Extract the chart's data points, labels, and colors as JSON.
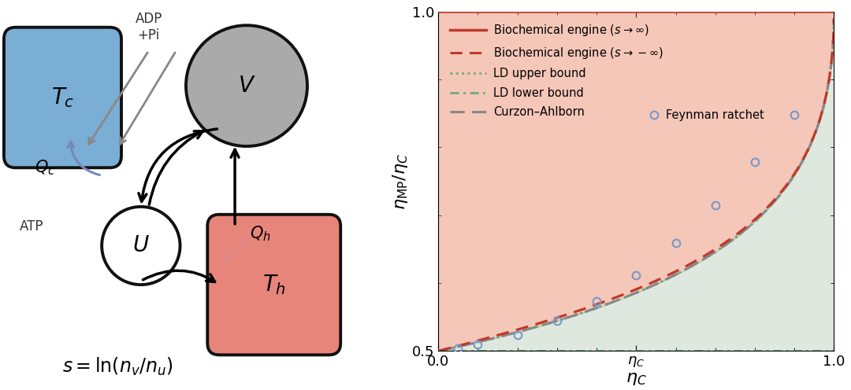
{
  "fig_width": 10.8,
  "fig_height": 4.96,
  "dpi": 100,
  "bg_color": "#ffffff",
  "bio_engine_inf_color": "#c0392b",
  "bio_engine_neg_inf_color": "#c0392b",
  "ld_upper_color": "#6aaa80",
  "ld_lower_color": "#6aaa80",
  "curzon_color": "#888888",
  "feynman_color": "#7799cc",
  "feynman_x": [
    0.05,
    0.1,
    0.2,
    0.3,
    0.4,
    0.5,
    0.6,
    0.7,
    0.8,
    0.9
  ],
  "feynman_y": [
    0.504,
    0.51,
    0.524,
    0.545,
    0.573,
    0.612,
    0.659,
    0.715,
    0.778,
    0.848
  ],
  "xlim": [
    0.0,
    1.0
  ],
  "ylim": [
    0.5,
    1.0
  ],
  "fill_red_alpha": 0.35,
  "fill_tan_alpha": 0.45,
  "fill_green_alpha": 0.3,
  "Tc_box_color": "#7baed4",
  "Tc_box_edge": "#111111",
  "Th_box_color": "#e8857a",
  "Th_box_edge": "#111111",
  "V_circle_color": "#aaaaaa",
  "V_circle_edge": "#111111",
  "U_circle_color": "#ffffff",
  "U_circle_edge": "#111111"
}
